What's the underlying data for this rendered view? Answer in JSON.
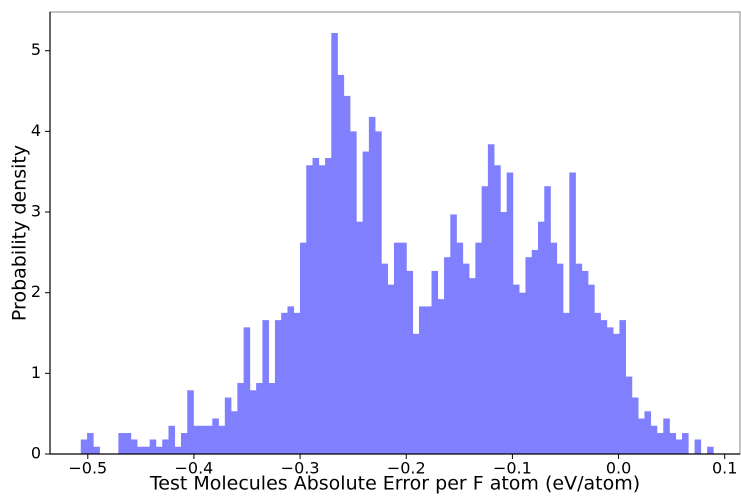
{
  "chart_data": {
    "type": "histogram",
    "xlabel": "Test Molecules Absolute Error per F atom (eV/atom)",
    "ylabel": "Probability density",
    "color": "#8080ff",
    "bins": [
      -0.5066,
      -0.5007,
      -0.4948,
      -0.4889,
      -0.483,
      -0.4771,
      -0.4712,
      -0.4653,
      -0.4594,
      -0.4535,
      -0.4476,
      -0.4417,
      -0.4358,
      -0.4299,
      -0.424,
      -0.4181,
      -0.4122,
      -0.4063,
      -0.4004,
      -0.3945,
      -0.3886,
      -0.3827,
      -0.3768,
      -0.3709,
      -0.365,
      -0.3591,
      -0.3532,
      -0.3473,
      -0.3414,
      -0.3355,
      -0.3296,
      -0.3237,
      -0.3178,
      -0.3119,
      -0.306,
      -0.3001,
      -0.2942,
      -0.2883,
      -0.2824,
      -0.2765,
      -0.2706,
      -0.2647,
      -0.2588,
      -0.2529,
      -0.247,
      -0.2411,
      -0.2352,
      -0.2293,
      -0.2234,
      -0.2175,
      -0.2116,
      -0.2057,
      -0.1998,
      -0.1939,
      -0.188,
      -0.1821,
      -0.1762,
      -0.1703,
      -0.1644,
      -0.1585,
      -0.1526,
      -0.1467,
      -0.1408,
      -0.1349,
      -0.129,
      -0.1231,
      -0.1172,
      -0.1113,
      -0.1054,
      -0.0995,
      -0.0936,
      -0.0877,
      -0.0818,
      -0.0759,
      -0.07,
      -0.0641,
      -0.0582,
      -0.0523,
      -0.0464,
      -0.0405,
      -0.0346,
      -0.0287,
      -0.0228,
      -0.0169,
      -0.011,
      -0.0051,
      0.0008,
      0.0067,
      0.0126,
      0.0185,
      0.0244,
      0.0303,
      0.0362,
      0.0421,
      0.048,
      0.0539,
      0.0598,
      0.0657,
      0.0716,
      0.0775,
      0.0834,
      0.0893
    ],
    "counts": [
      0.18,
      0.26,
      0.09,
      0,
      0,
      0,
      0.26,
      0.26,
      0.18,
      0.09,
      0.09,
      0.18,
      0.09,
      0.18,
      0.35,
      0.09,
      0.26,
      0.79,
      0.35,
      0.35,
      0.35,
      0.44,
      0.35,
      0.7,
      0.53,
      0.88,
      1.57,
      0.79,
      0.88,
      1.66,
      0.88,
      1.66,
      1.75,
      1.83,
      1.75,
      2.62,
      3.58,
      3.67,
      3.58,
      3.67,
      5.22,
      4.7,
      4.44,
      4.0,
      2.88,
      3.75,
      4.18,
      4.0,
      2.36,
      2.1,
      2.62,
      2.62,
      2.27,
      1.49,
      1.83,
      1.83,
      2.27,
      1.92,
      2.44,
      2.97,
      2.62,
      2.36,
      2.18,
      2.62,
      3.32,
      3.84,
      3.58,
      3.0,
      3.49,
      2.1,
      2.0,
      2.44,
      2.53,
      2.88,
      3.32,
      2.62,
      2.36,
      1.75,
      3.49,
      2.36,
      2.27,
      2.1,
      1.75,
      1.66,
      1.57,
      1.49,
      1.66,
      0.96,
      0.7,
      0.44,
      0.53,
      0.35,
      0.26,
      0.44,
      0.26,
      0.18,
      0.26,
      0,
      0.18,
      0,
      0.09
    ],
    "xlim": [
      -0.5356,
      0.1144
    ],
    "ylim": [
      0,
      5.48
    ],
    "xticks": [
      {
        "value": -0.5,
        "label": "−0.5"
      },
      {
        "value": -0.4,
        "label": "−0.4"
      },
      {
        "value": -0.3,
        "label": "−0.3"
      },
      {
        "value": -0.2,
        "label": "−0.2"
      },
      {
        "value": -0.1,
        "label": "−0.1"
      },
      {
        "value": 0,
        "label": "0.0"
      },
      0.1
    ],
    "yticks": [
      0,
      1,
      2,
      3,
      4,
      5
    ]
  }
}
